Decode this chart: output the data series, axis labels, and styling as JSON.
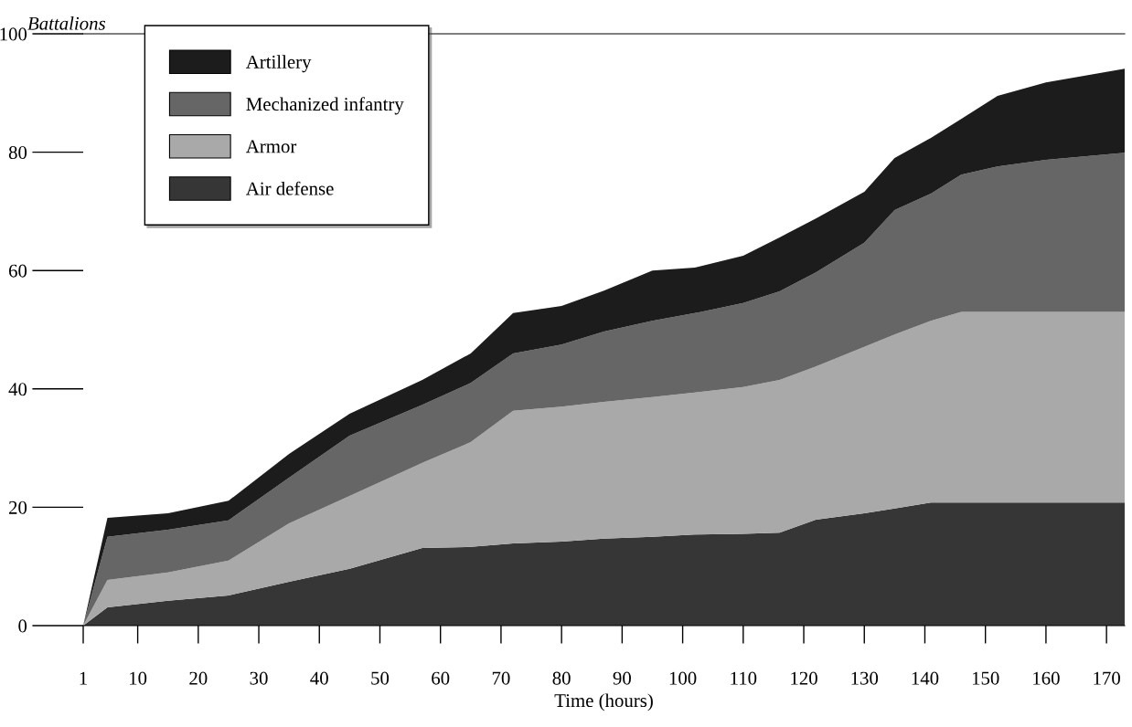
{
  "chart_data": {
    "type": "area",
    "stacked": true,
    "ylabel": "Battalions",
    "xlabel": "Time (hours)",
    "x": [
      1,
      5,
      15,
      25,
      35,
      45,
      57,
      65,
      72,
      80,
      87,
      95,
      102,
      110,
      116,
      122,
      130,
      135,
      141,
      146,
      152,
      160,
      173
    ],
    "series": [
      {
        "name": "Air defense",
        "color": "#363636",
        "values": [
          0,
          3.1,
          4.2,
          5.1,
          7.4,
          9.6,
          13.1,
          13.3,
          13.9,
          14.2,
          14.7,
          15,
          15.4,
          15.5,
          15.7,
          17.9,
          19,
          19.8,
          20.8,
          20.8,
          20.8,
          20.8,
          20.8
        ]
      },
      {
        "name": "Armor",
        "color": "#a9a9a9",
        "values": [
          0,
          4.6,
          4.8,
          5.9,
          9.9,
          12.3,
          14.4,
          17.7,
          22.4,
          22.8,
          23.1,
          23.6,
          24,
          24.8,
          25.8,
          25.9,
          28.1,
          29.4,
          30.7,
          32.2,
          32.2,
          32.2,
          32.2
        ]
      },
      {
        "name": "Mechanized infantry",
        "color": "#666666",
        "values": [
          0,
          7.3,
          7.2,
          6.8,
          7.7,
          10.2,
          9.8,
          10,
          9.7,
          10.5,
          11.9,
          12.9,
          13.4,
          14.2,
          15,
          15.9,
          17.6,
          21,
          21.5,
          23.2,
          24.6,
          25.7,
          26.9
        ]
      },
      {
        "name": "Artillery",
        "color": "#1c1c1c",
        "values": [
          0,
          3.2,
          2.8,
          3.3,
          4,
          3.7,
          4.2,
          5,
          6.8,
          6.5,
          6.9,
          8.5,
          7.7,
          8,
          9.1,
          9.1,
          8.6,
          8.8,
          9.4,
          9.4,
          11.9,
          13.1,
          14.2
        ]
      }
    ],
    "xlim": [
      1,
      173
    ],
    "xticks": [
      1,
      10,
      20,
      30,
      40,
      50,
      60,
      70,
      80,
      90,
      100,
      110,
      120,
      130,
      140,
      150,
      160,
      170
    ],
    "ylim": [
      0,
      100
    ],
    "yticks": [
      0,
      20,
      40,
      60,
      80,
      100
    ],
    "legend": "top left"
  }
}
